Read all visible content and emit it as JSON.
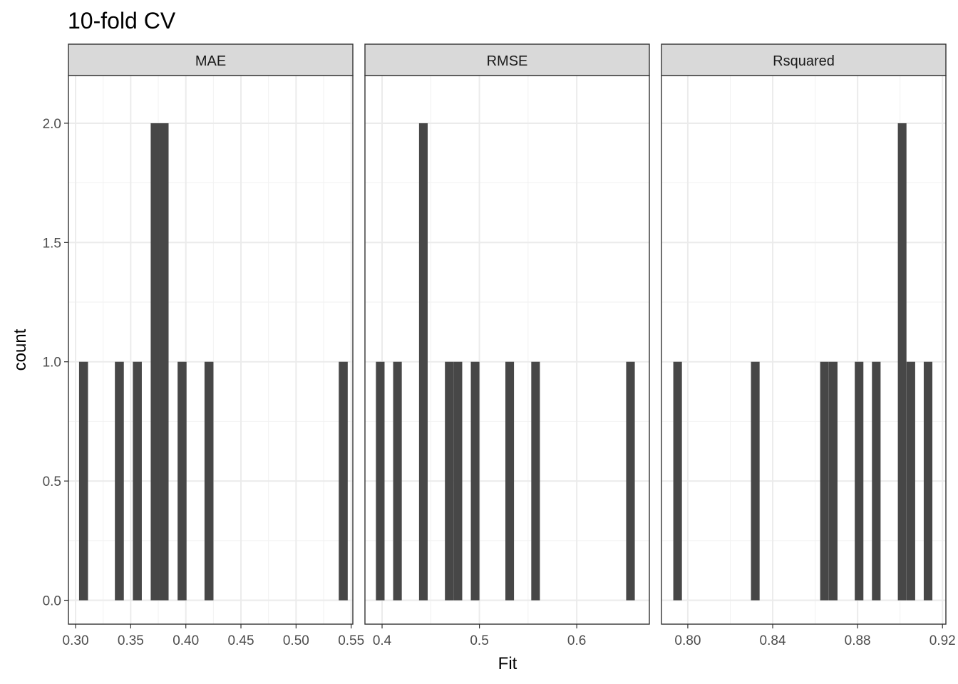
{
  "chart_data": {
    "type": "bar",
    "title": "10-fold CV",
    "xlabel": "Fit",
    "ylabel": "count",
    "ylim": [
      -0.1,
      2.2
    ],
    "y_ticks": [
      {
        "value": 0,
        "label": "0.0"
      },
      {
        "value": 0.5,
        "label": "0.5"
      },
      {
        "value": 1,
        "label": "1.0"
      },
      {
        "value": 1.5,
        "label": "1.5"
      },
      {
        "value": 2,
        "label": "2.0"
      }
    ],
    "bar_fill": "#474747",
    "grid": true,
    "panels": [
      {
        "name": "MAE",
        "xlim": [
          0.2935,
          0.5515
        ],
        "x_ticks": [
          {
            "value": 0.3,
            "label": "0.30"
          },
          {
            "value": 0.35,
            "label": "0.35"
          },
          {
            "value": 0.4,
            "label": "0.40"
          },
          {
            "value": 0.45,
            "label": "0.45"
          },
          {
            "value": 0.5,
            "label": "0.50"
          },
          {
            "value": 0.55,
            "label": "0.55"
          }
        ],
        "bin_width": 0.00812,
        "bars": [
          {
            "x": 0.3072,
            "count": 1
          },
          {
            "x": 0.3397,
            "count": 1
          },
          {
            "x": 0.356,
            "count": 1
          },
          {
            "x": 0.3722,
            "count": 2
          },
          {
            "x": 0.3803,
            "count": 2
          },
          {
            "x": 0.3966,
            "count": 1
          },
          {
            "x": 0.421,
            "count": 1
          },
          {
            "x": 0.5428,
            "count": 1
          }
        ]
      },
      {
        "name": "RMSE",
        "xlim": [
          0.3824,
          0.6746
        ],
        "x_ticks": [
          {
            "value": 0.4,
            "label": "0.4"
          },
          {
            "value": 0.5,
            "label": "0.5"
          },
          {
            "value": 0.6,
            "label": "0.6"
          }
        ],
        "bin_width": 0.00887,
        "bars": [
          {
            "x": 0.3981,
            "count": 1
          },
          {
            "x": 0.4158,
            "count": 1
          },
          {
            "x": 0.4424,
            "count": 2
          },
          {
            "x": 0.469,
            "count": 1
          },
          {
            "x": 0.4779,
            "count": 1
          },
          {
            "x": 0.4956,
            "count": 1
          },
          {
            "x": 0.5311,
            "count": 1
          },
          {
            "x": 0.5577,
            "count": 1
          },
          {
            "x": 0.6552,
            "count": 1
          }
        ]
      },
      {
        "name": "Rsquared",
        "xlim": [
          0.7876,
          0.9216
        ],
        "x_ticks": [
          {
            "value": 0.8,
            "label": "0.80"
          },
          {
            "value": 0.84,
            "label": "0.84"
          },
          {
            "value": 0.88,
            "label": "0.88"
          },
          {
            "value": 0.92,
            "label": "0.92"
          }
        ],
        "bin_width": 0.00407,
        "bars": [
          {
            "x": 0.7952,
            "count": 1
          },
          {
            "x": 0.8318,
            "count": 1
          },
          {
            "x": 0.8644,
            "count": 1
          },
          {
            "x": 0.8685,
            "count": 1
          },
          {
            "x": 0.8807,
            "count": 1
          },
          {
            "x": 0.8888,
            "count": 1
          },
          {
            "x": 0.901,
            "count": 2
          },
          {
            "x": 0.9051,
            "count": 1
          },
          {
            "x": 0.9132,
            "count": 1
          }
        ]
      }
    ]
  }
}
